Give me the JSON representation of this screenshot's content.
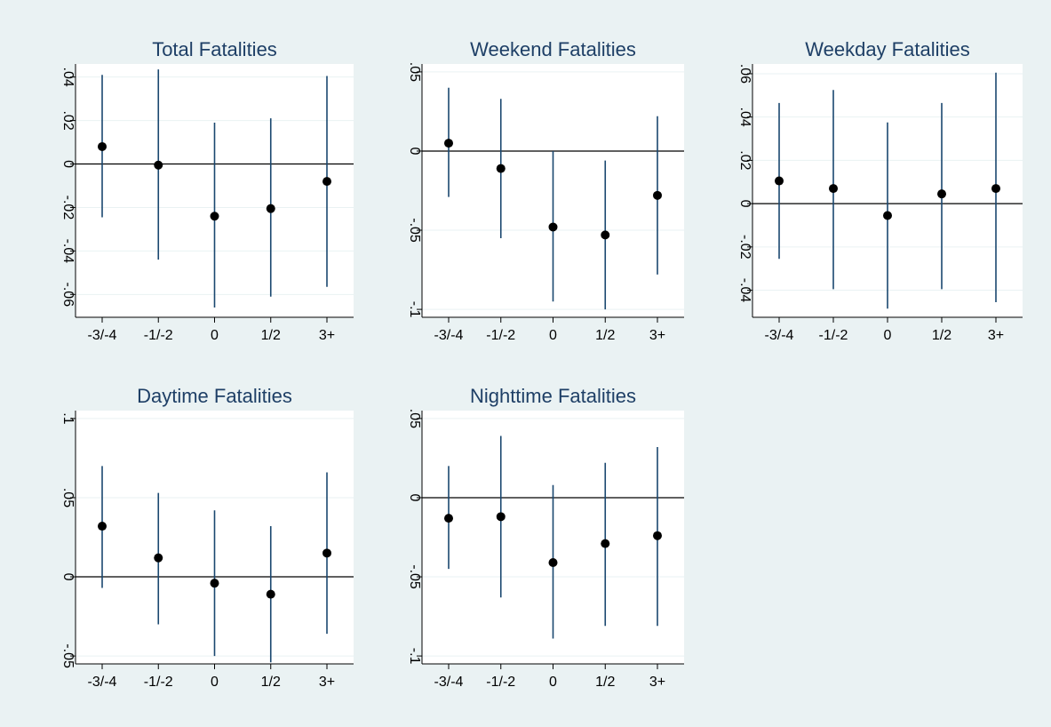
{
  "colors": {
    "background": "#eaf2f3",
    "plot_background": "#ffffff",
    "title": "#1e3f66",
    "ci_line": "#1a476f",
    "point": "#000000",
    "grid": "#eaf2f3",
    "axis": "#000000"
  },
  "chart_data": [
    {
      "type": "scatter",
      "title": "Total Fatalities",
      "categories": [
        "-3/-4",
        "-1/-2",
        "0",
        "1/2",
        "3+"
      ],
      "estimates": [
        0.008,
        -0.0005,
        -0.024,
        -0.0205,
        -0.008
      ],
      "ci_low": [
        -0.0245,
        -0.044,
        -0.066,
        -0.061,
        -0.0565
      ],
      "ci_high": [
        0.041,
        0.0435,
        0.019,
        0.021,
        0.0405
      ],
      "yticks": [
        -0.06,
        -0.04,
        -0.02,
        0,
        0.02,
        0.04
      ],
      "ytick_labels": [
        "-.06",
        "-.04",
        "-.02",
        "0",
        ".02",
        ".04"
      ],
      "ylim": [
        -0.0705,
        0.046
      ],
      "reference_line": 0,
      "grid": true
    },
    {
      "type": "scatter",
      "title": "Weekend Fatalities",
      "categories": [
        "-3/-4",
        "-1/-2",
        "0",
        "1/2",
        "3+"
      ],
      "estimates": [
        0.005,
        -0.011,
        -0.048,
        -0.053,
        -0.028
      ],
      "ci_low": [
        -0.029,
        -0.055,
        -0.095,
        -0.1,
        -0.078
      ],
      "ci_high": [
        0.04,
        0.033,
        0.0,
        -0.006,
        0.022
      ],
      "yticks": [
        -0.1,
        -0.05,
        0,
        0.05
      ],
      "ytick_labels": [
        "-.1",
        "-.05",
        "0",
        ".05"
      ],
      "ylim": [
        -0.105,
        0.055
      ],
      "reference_line": 0,
      "grid": true
    },
    {
      "type": "scatter",
      "title": "Weekday Fatalities",
      "categories": [
        "-3/-4",
        "-1/-2",
        "0",
        "1/2",
        "3+"
      ],
      "estimates": [
        0.0105,
        0.007,
        -0.0055,
        0.0045,
        0.007
      ],
      "ci_low": [
        -0.0255,
        -0.0395,
        -0.0485,
        -0.0395,
        -0.0455
      ],
      "ci_high": [
        0.0465,
        0.0525,
        0.0375,
        0.0465,
        0.0605
      ],
      "yticks": [
        -0.04,
        -0.02,
        0,
        0.02,
        0.04,
        0.06
      ],
      "ytick_labels": [
        "-.04",
        "-.02",
        "0",
        ".02",
        ".04",
        ".06"
      ],
      "ylim": [
        -0.0525,
        0.0645
      ],
      "reference_line": 0,
      "grid": true
    },
    {
      "type": "scatter",
      "title": "Daytime Fatalities",
      "categories": [
        "-3/-4",
        "-1/-2",
        "0",
        "1/2",
        "3+"
      ],
      "estimates": [
        0.032,
        0.012,
        -0.004,
        -0.011,
        0.015
      ],
      "ci_low": [
        -0.007,
        -0.03,
        -0.05,
        -0.054,
        -0.036
      ],
      "ci_high": [
        0.07,
        0.053,
        0.042,
        0.032,
        0.066
      ],
      "yticks": [
        -0.05,
        0,
        0.05,
        0.1
      ],
      "ytick_labels": [
        "-.05",
        "0",
        ".05",
        ".1"
      ],
      "ylim": [
        -0.055,
        0.105
      ],
      "reference_line": 0,
      "grid": true
    },
    {
      "type": "scatter",
      "title": "Nighttime Fatalities",
      "categories": [
        "-3/-4",
        "-1/-2",
        "0",
        "1/2",
        "3+"
      ],
      "estimates": [
        -0.013,
        -0.012,
        -0.041,
        -0.029,
        -0.024
      ],
      "ci_low": [
        -0.045,
        -0.063,
        -0.089,
        -0.081,
        -0.081
      ],
      "ci_high": [
        0.02,
        0.039,
        0.008,
        0.022,
        0.032
      ],
      "yticks": [
        -0.1,
        -0.05,
        0,
        0.05
      ],
      "ytick_labels": [
        "-.1",
        "-.05",
        "0",
        ".05"
      ],
      "ylim": [
        -0.105,
        0.055
      ],
      "reference_line": 0,
      "grid": true
    }
  ]
}
